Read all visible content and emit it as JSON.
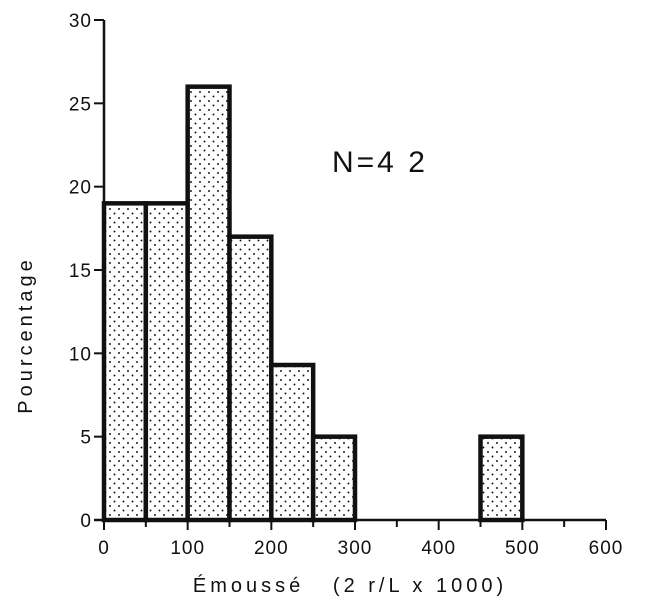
{
  "chart_data": {
    "type": "bar",
    "histogram": true,
    "bin_edges": [
      0,
      50,
      100,
      150,
      200,
      250,
      300,
      350,
      400,
      450,
      500
    ],
    "values": [
      19,
      19,
      26,
      17,
      9.3,
      5,
      0,
      0,
      0,
      5
    ],
    "xlabel": "Émoussé   (2 r/L x 1000)",
    "ylabel": "Pourcentage",
    "annotation": "N=4 2",
    "xlim": [
      0,
      600
    ],
    "ylim": [
      0,
      30
    ],
    "xticks": [
      0,
      100,
      200,
      300,
      400,
      500,
      600
    ],
    "yticks": [
      0,
      5,
      10,
      15,
      20,
      25,
      30
    ],
    "grid": false,
    "bar_style": "stippled",
    "colors": {
      "ink": "#111111",
      "background": "#ffffff"
    }
  }
}
